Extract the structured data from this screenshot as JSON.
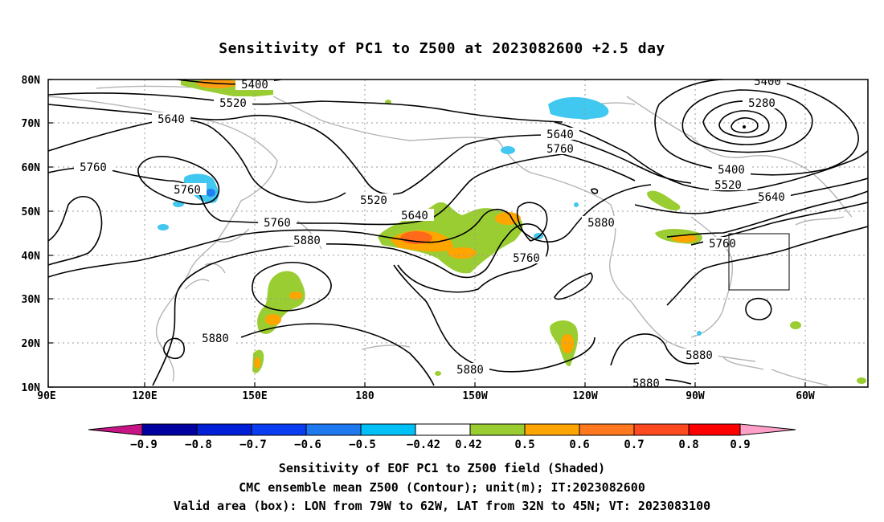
{
  "title": "Sensitivity of PC1 to Z500 at 2023082600 +2.5 day",
  "map": {
    "lat_ticks": [
      "80N",
      "70N",
      "60N",
      "50N",
      "40N",
      "30N",
      "20N",
      "10N"
    ],
    "lon_ticks": [
      "90E",
      "120E",
      "150E",
      "180",
      "150W",
      "120W",
      "90W",
      "60W"
    ],
    "contour_labels": [
      "5400",
      "5520",
      "5640",
      "5760",
      "5760",
      "5760",
      "5880",
      "5880",
      "5520",
      "5640",
      "5760",
      "5760",
      "5880",
      "5880",
      "5880",
      "5640",
      "5760",
      "5880",
      "5400",
      "5280",
      "5400",
      "5520",
      "5640",
      "5760",
      "5880"
    ],
    "box": {
      "lon_from": "79W",
      "lon_to": "62W",
      "lat_from": "32N",
      "lat_to": "45N"
    }
  },
  "colorbar": {
    "labels": [
      "−0.9",
      "−0.8",
      "−0.7",
      "−0.6",
      "−0.5",
      "−0.42",
      "0.42",
      "0.5",
      "0.6",
      "0.7",
      "0.8",
      "0.9"
    ],
    "colors": [
      "#c71585",
      "#0000a0",
      "#0020d8",
      "#0a3cf0",
      "#1e78f0",
      "#00c0f8",
      "#ffffff",
      "#9acd32",
      "#ffa500",
      "#ff7820",
      "#ff4a20",
      "#ff0000",
      "#ffa0c8"
    ]
  },
  "shade_colors": {
    "green": "#9acd32",
    "orange": "#ffa500",
    "red_orange": "#ff6a1a",
    "cyan": "#40c8f0",
    "blue": "#2080f0"
  },
  "captions": {
    "line1": "Sensitivity of EOF PC1 to Z500 field (Shaded)",
    "line2": "CMC ensemble mean Z500 (Contour); unit(m); IT:2023082600",
    "line3": "Valid area (box): LON from 79W to 62W, LAT from 32N to 45N; VT: 2023083100"
  }
}
